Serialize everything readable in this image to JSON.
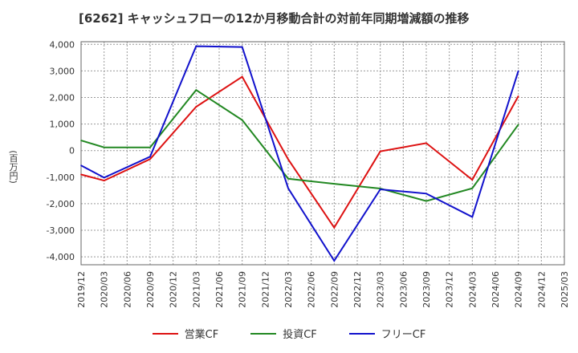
{
  "chart_data": {
    "type": "line",
    "title": "[6262]  キャッシュフローの12か月移動合計の対前年同期増減額の推移",
    "ylabel": "(百万円)",
    "xlabel": "",
    "ylim": [
      -4300,
      4100
    ],
    "yticks": [
      4000,
      3000,
      2000,
      1000,
      0,
      -1000,
      -2000,
      -3000,
      -4000
    ],
    "ytick_labels": [
      "4,000",
      "3,000",
      "2,000",
      "1,000",
      "0",
      "-1,000",
      "-2,000",
      "-3,000",
      "-4,000"
    ],
    "categories": [
      "2019/12",
      "2020/03",
      "2020/06",
      "2020/09",
      "2020/12",
      "2021/03",
      "2021/06",
      "2021/09",
      "2021/12",
      "2022/03",
      "2022/06",
      "2022/09",
      "2022/12",
      "2023/03",
      "2023/06",
      "2023/09",
      "2023/12",
      "2024/03",
      "2024/06",
      "2024/09",
      "2024/12",
      "2025/03"
    ],
    "grid": true,
    "legend_position": "bottom",
    "series": [
      {
        "name": "営業CF",
        "color": "#dd1111",
        "values": [
          -900,
          -1130,
          null,
          -320,
          null,
          1650,
          null,
          2780,
          null,
          -330,
          null,
          -2900,
          null,
          -30,
          null,
          280,
          null,
          -1100,
          null,
          2050,
          null,
          null
        ]
      },
      {
        "name": "投資CF",
        "color": "#228822",
        "values": [
          380,
          120,
          null,
          120,
          null,
          2280,
          null,
          1150,
          null,
          -1060,
          null,
          -1250,
          null,
          -1430,
          null,
          -1900,
          null,
          -1420,
          null,
          980,
          null,
          null
        ]
      },
      {
        "name": "フリーCF",
        "color": "#1111cc",
        "values": [
          -560,
          -1020,
          null,
          -230,
          null,
          3930,
          null,
          3900,
          null,
          -1420,
          null,
          -4150,
          null,
          -1460,
          null,
          -1620,
          null,
          -2500,
          null,
          3000,
          null,
          null
        ]
      }
    ]
  }
}
